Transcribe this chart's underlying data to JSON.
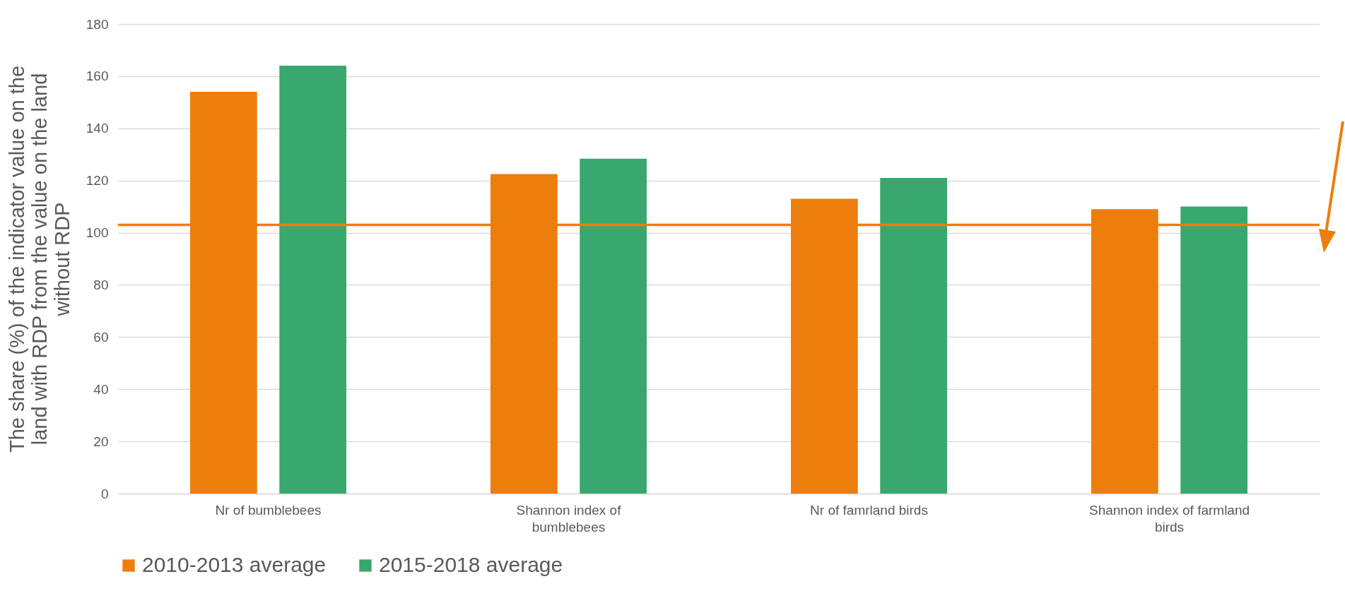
{
  "chart_data": {
    "type": "bar",
    "ylabel": "The share (%) of the indicator value on the land with RDP from the value on the land without RDP",
    "categories": [
      "Nr of bumblebees",
      "Shannon index of bumblebees",
      "Nr of famrland birds",
      "Shannon index of farmland birds"
    ],
    "series": [
      {
        "name": "2010-2013 average",
        "color": "#ed7d0c",
        "values": [
          154,
          122.5,
          113,
          109
        ]
      },
      {
        "name": "2015-2018 average",
        "color": "#38a86e",
        "values": [
          164,
          128.4,
          121,
          110
        ]
      }
    ],
    "ylim": [
      0,
      180
    ],
    "yticks": [
      0,
      20,
      40,
      60,
      80,
      100,
      120,
      140,
      160,
      180
    ],
    "grid": "y",
    "legend": "bottom",
    "ref_lines": [
      {
        "axis": "y",
        "value": 103,
        "color": "#ed7d0c"
      }
    ]
  }
}
